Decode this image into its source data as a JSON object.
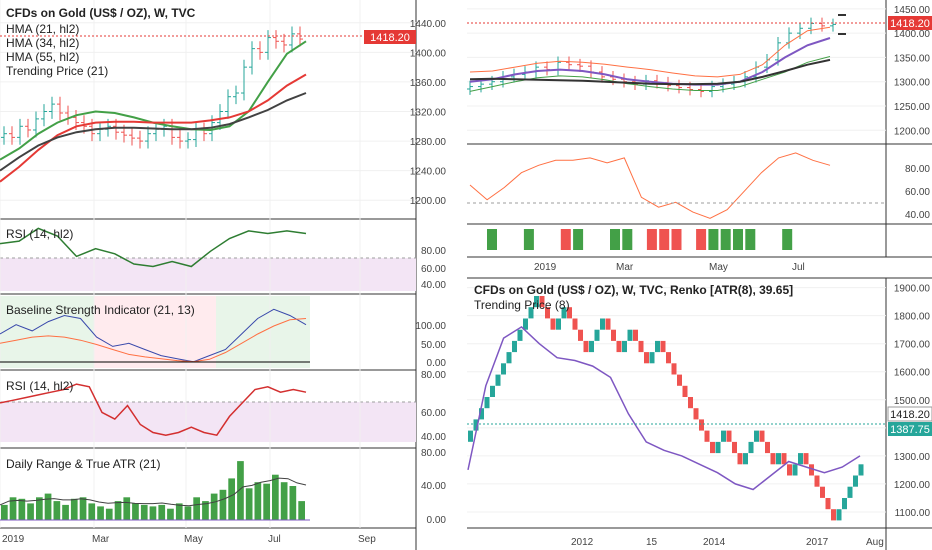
{
  "colors": {
    "up_candle": "#26a69a",
    "down_candle": "#ef5350",
    "green_ma": "#43a047",
    "red_ma": "#e53935",
    "dark_ma": "#424242",
    "purple_ma": "#7e57c2",
    "rsi_band": "#f3e5f5",
    "price_tag": "#e53935",
    "atr_tag": "#26a69a"
  },
  "left": {
    "title": "CFDs on Gold (US$ / OZ), W, TVC",
    "legend": [
      "HMA (21, hl2)",
      "HMA (34, hl2)",
      "HMA (55, hl2)",
      "Trending Price (21)"
    ],
    "price_ticks": [
      "1440.00",
      "1400.00",
      "1360.00",
      "1320.00",
      "1280.00",
      "1240.00",
      "1200.00"
    ],
    "last_price": "1418.20",
    "rsi1_label": "RSI (14, hl2)",
    "rsi1_ticks": [
      "80.00",
      "60.00",
      "40.00"
    ],
    "bsi_label": "Baseline Strength Indicator (21, 13)",
    "bsi_ticks": [
      "100.00",
      "50.00",
      "0.00"
    ],
    "rsi2_label": "RSI (14, hl2)",
    "rsi2_ticks": [
      "80.00",
      "60.00",
      "40.00"
    ],
    "atr_label": "Daily Range & True ATR (21)",
    "atr_ticks": [
      "80.00",
      "40.00",
      "0.00"
    ],
    "time_ticks": [
      "2019",
      "Mar",
      "May",
      "Jul",
      "Sep"
    ]
  },
  "right_top": {
    "price_ticks": [
      "1450.00",
      "1400.00",
      "1350.00",
      "1300.00",
      "1250.00",
      "1200.00"
    ],
    "last_price": "1418.20",
    "osc_ticks": [
      "80.00",
      "60.00",
      "40.00"
    ],
    "time_ticks": [
      "2019",
      "Mar",
      "May",
      "Jul"
    ]
  },
  "right_bottom": {
    "title": "CFDs on Gold (US$ / OZ), W, TVC, Renko [ATR(8), 39.65]",
    "legend": "Trending Price (8)",
    "price_ticks": [
      "1900.00",
      "1800.00",
      "1700.00",
      "1600.00",
      "1500.00",
      "1400.00",
      "1300.00",
      "1200.00",
      "1100.00"
    ],
    "last_price": "1418.20",
    "atr_price": "1387.75",
    "time_ticks": [
      "2012",
      "15",
      "2014",
      "2017",
      "Aug"
    ]
  },
  "chart_data": [
    {
      "type": "line",
      "title": "CFDs on Gold (US$ / OZ), W, TVC",
      "series": [
        {
          "name": "HMA (21, hl2)",
          "values": [
            1255,
            1270,
            1290,
            1305,
            1315,
            1320,
            1318,
            1312,
            1305,
            1300,
            1296,
            1295,
            1300,
            1320,
            1360,
            1398,
            1415
          ]
        },
        {
          "name": "HMA (34, hl2)",
          "values": [
            1225,
            1245,
            1268,
            1288,
            1300,
            1305,
            1306,
            1306,
            1305,
            1305,
            1305,
            1308,
            1312,
            1320,
            1335,
            1355,
            1370
          ]
        },
        {
          "name": "HMA (55, hl2)",
          "values": [
            1240,
            1258,
            1274,
            1285,
            1292,
            1296,
            1298,
            1298,
            1297,
            1296,
            1296,
            1298,
            1303,
            1312,
            1322,
            1335,
            1345
          ]
        }
      ],
      "ylim": [
        1180,
        1460
      ]
    },
    {
      "type": "line",
      "title": "RSI (14, hl2)",
      "series": [
        {
          "name": "RSI (14, hl2)",
          "values": [
            68,
            70,
            80,
            74,
            58,
            64,
            60,
            52,
            50,
            54,
            50,
            62,
            72,
            78,
            76,
            78,
            76
          ]
        }
      ],
      "ylim": [
        30,
        85
      ]
    },
    {
      "type": "bar",
      "title": "Daily Range & True ATR (21)",
      "values": [
        20,
        30,
        28,
        22,
        30,
        35,
        25,
        20,
        28,
        30,
        22,
        18,
        15,
        25,
        30,
        22,
        20,
        18,
        20,
        15,
        22,
        18,
        30,
        25,
        35,
        40,
        55,
        78,
        42,
        50,
        48,
        60,
        50,
        45,
        25
      ],
      "ylim": [
        0,
        90
      ]
    },
    {
      "type": "line",
      "title": "CFDs on Gold (US$ / OZ), W, TVC, Renko [ATR(8), 39.65]",
      "series": [
        {
          "name": "Trending Price (8)",
          "values": [
            1250,
            1550,
            1720,
            1760,
            1700,
            1650,
            1640,
            1620,
            1580,
            1450,
            1350,
            1320,
            1300,
            1270,
            1240,
            1200,
            1180,
            1230,
            1280,
            1260,
            1240,
            1260,
            1300
          ]
        }
      ],
      "ylim": [
        1050,
        1920
      ]
    }
  ]
}
